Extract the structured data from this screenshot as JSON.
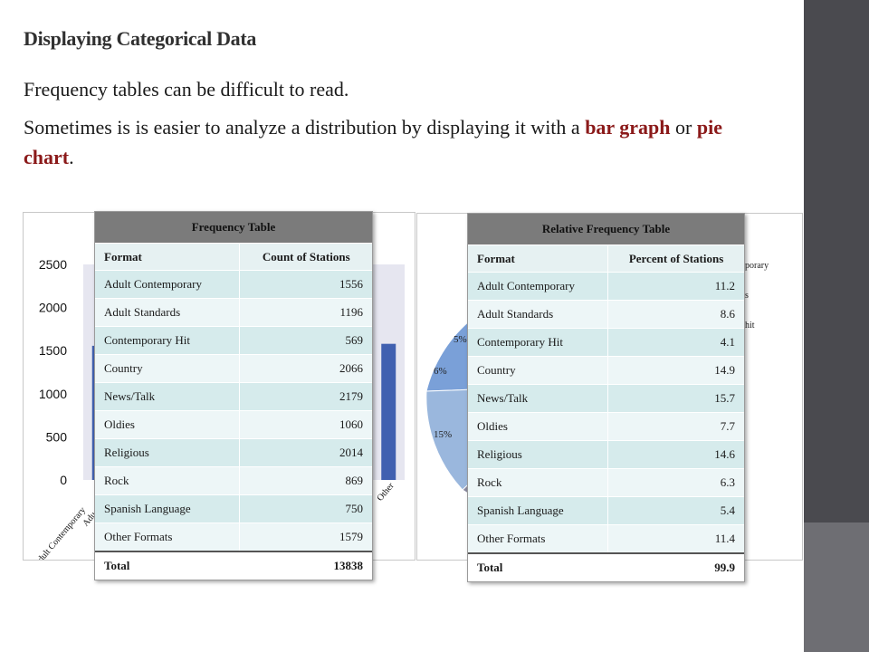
{
  "slide": {
    "title": "Displaying Categorical Data",
    "line1": "Frequency tables can be difficult to read.",
    "line2_a": "Sometimes is is easier to analyze a distribution by displaying it with a ",
    "line2_b": "bar graph",
    "line2_c": " or ",
    "line2_d": "pie chart",
    "line2_e": "."
  },
  "bar_chart_visible": {
    "y_ticks": [
      "2500",
      "2000",
      "1500",
      "1000",
      "500",
      "0"
    ],
    "x_labels_visible": [
      "Adult Contemporary",
      "Adu",
      "Other"
    ]
  },
  "pie_visible": {
    "percent_labels": [
      "5%",
      "6%",
      "15%"
    ],
    "legend_fragments": [
      "porary",
      "s",
      "hit"
    ]
  },
  "chart_data": [
    {
      "type": "bar",
      "categories": [
        "Adult Contemporary",
        "Adult Standards",
        "Contemporary Hit",
        "Country",
        "News/Talk",
        "Oldies",
        "Religious",
        "Rock",
        "Spanish Language",
        "Other Formats"
      ],
      "values": [
        1556,
        1196,
        569,
        2066,
        2179,
        1060,
        2014,
        869,
        750,
        1579
      ],
      "ylim": [
        0,
        2500
      ],
      "yticks": [
        0,
        500,
        1000,
        1500,
        2000,
        2500
      ]
    },
    {
      "type": "pie",
      "categories": [
        "Adult Contemporary",
        "Adult Standards",
        "Contemporary Hit",
        "Country",
        "News/Talk",
        "Oldies",
        "Religious",
        "Rock",
        "Spanish Language",
        "Other Formats"
      ],
      "values": [
        11.2,
        8.6,
        4.1,
        14.9,
        15.7,
        7.7,
        14.6,
        6.3,
        5.4,
        11.4
      ]
    }
  ],
  "freq_table": {
    "caption": "Frequency Table",
    "col1": "Format",
    "col2": "Count of Stations",
    "rows": [
      {
        "format": "Adult Contemporary",
        "value": "1556"
      },
      {
        "format": "Adult Standards",
        "value": "1196"
      },
      {
        "format": "Contemporary Hit",
        "value": "569"
      },
      {
        "format": "Country",
        "value": "2066"
      },
      {
        "format": "News/Talk",
        "value": "2179"
      },
      {
        "format": "Oldies",
        "value": "1060"
      },
      {
        "format": "Religious",
        "value": "2014"
      },
      {
        "format": "Rock",
        "value": "869"
      },
      {
        "format": "Spanish Language",
        "value": "750"
      },
      {
        "format": "Other Formats",
        "value": "1579"
      }
    ],
    "total_label": "Total",
    "total_value": "13838"
  },
  "rel_table": {
    "caption": "Relative Frequency Table",
    "col1": "Format",
    "col2": "Percent of Stations",
    "rows": [
      {
        "format": "Adult Contemporary",
        "value": "11.2"
      },
      {
        "format": "Adult Standards",
        "value": "8.6"
      },
      {
        "format": "Contemporary Hit",
        "value": "4.1"
      },
      {
        "format": "Country",
        "value": "14.9"
      },
      {
        "format": "News/Talk",
        "value": "15.7"
      },
      {
        "format": "Oldies",
        "value": "7.7"
      },
      {
        "format": "Religious",
        "value": "14.6"
      },
      {
        "format": "Rock",
        "value": "6.3"
      },
      {
        "format": "Spanish Language",
        "value": "5.4"
      },
      {
        "format": "Other Formats",
        "value": "11.4"
      }
    ],
    "total_label": "Total",
    "total_value": "99.9"
  },
  "colors": {
    "bar": "#4060b0",
    "plot_bg": "#e6e6f0",
    "highlight": "#8b1a1a",
    "pie_blue": "#9ab7dd",
    "pie_mid_blue": "#7aa0d8",
    "pie_gray": "#a9a9ad"
  }
}
